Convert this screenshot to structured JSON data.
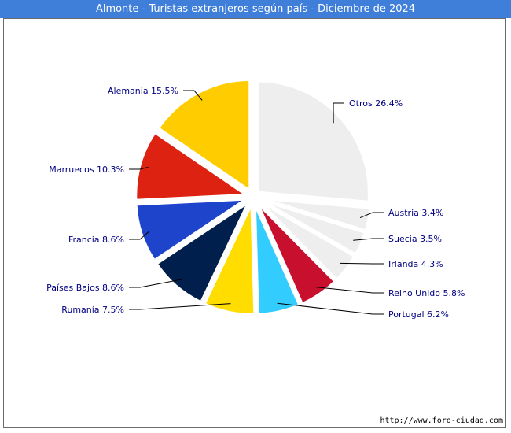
{
  "title": "Almonte - Turistas extranjeros según país - Diciembre de 2024",
  "source": "http://www.foro-ciudad.com",
  "chart_data": {
    "type": "pie",
    "title": "Almonte - Turistas extranjeros según país - Diciembre de 2024",
    "slices": [
      {
        "name": "Otros",
        "value": 26.4,
        "label": "Otros 26.4%",
        "color": "#eeeeee"
      },
      {
        "name": "Austria",
        "value": 3.4,
        "label": "Austria 3.4%",
        "color": "#eeeeee"
      },
      {
        "name": "Suecia",
        "value": 3.5,
        "label": "Suecia 3.5%",
        "color": "#eeeeee"
      },
      {
        "name": "Irlanda",
        "value": 4.3,
        "label": "Irlanda 4.3%",
        "color": "#eeeeee"
      },
      {
        "name": "Reino Unido",
        "value": 5.8,
        "label": "Reino Unido 5.8%",
        "color": "#c8102e"
      },
      {
        "name": "Portugal",
        "value": 6.2,
        "label": "Portugal 6.2%",
        "color": "#33ccff"
      },
      {
        "name": "Rumanía",
        "value": 7.5,
        "label": "Rumanía 7.5%",
        "color": "#ffdd00"
      },
      {
        "name": "Países Bajos",
        "value": 8.6,
        "label": "Países Bajos 8.6%",
        "color": "#001f4d"
      },
      {
        "name": "Francia",
        "value": 8.6,
        "label": "Francia 8.6%",
        "color": "#1f44cc"
      },
      {
        "name": "Marruecos",
        "value": 10.3,
        "label": "Marruecos 10.3%",
        "color": "#dd2211"
      },
      {
        "name": "Alemania",
        "value": 15.5,
        "label": "Alemania 15.5%",
        "color": "#ffcc00"
      }
    ]
  }
}
